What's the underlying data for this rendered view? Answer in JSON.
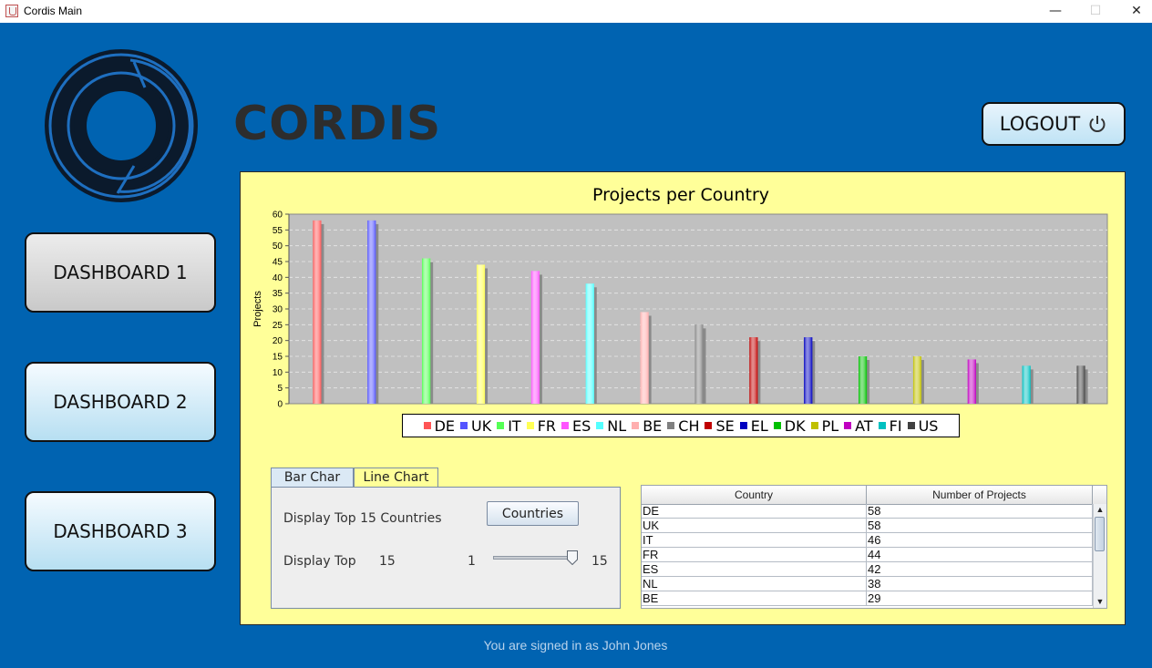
{
  "window": {
    "title": "Cordis Main",
    "minimize": "—",
    "maximize": "☐",
    "close": "✕"
  },
  "brand": {
    "name": "CORDIS",
    "logout_label": "LOGOUT"
  },
  "sidebar": {
    "items": [
      {
        "label": "DASHBOARD 1"
      },
      {
        "label": "DASHBOARD 2"
      },
      {
        "label": "DASHBOARD 3"
      }
    ]
  },
  "tabs": [
    {
      "label": "Bar Char"
    },
    {
      "label": "Line Chart"
    }
  ],
  "controls": {
    "display_top_text": "Display Top 15 Countries",
    "countries_button": "Countries",
    "display_top_label": "Display Top",
    "display_top_value": "15",
    "slider_min": "1",
    "slider_max": "15",
    "slider_value": 15
  },
  "table": {
    "columns": [
      "Country",
      "Number of Projects"
    ],
    "rows": [
      [
        "DE",
        "58"
      ],
      [
        "UK",
        "58"
      ],
      [
        "IT",
        "46"
      ],
      [
        "FR",
        "44"
      ],
      [
        "ES",
        "42"
      ],
      [
        "NL",
        "38"
      ],
      [
        "BE",
        "29"
      ]
    ]
  },
  "footer": {
    "signed_in": "You are signed in as John Jones"
  },
  "colors": {
    "background": "#0063b1",
    "panel": "#ffff99",
    "plot": "#c0c0c0"
  },
  "icons": {
    "logout": "power-icon",
    "app": "java-icon"
  },
  "chart_data": {
    "type": "bar",
    "title": "Projects per Country",
    "xlabel": "",
    "ylabel": "Projects",
    "ylim": [
      0,
      60
    ],
    "yticks": [
      "0",
      "5",
      "10",
      "15",
      "20",
      "25",
      "30",
      "35",
      "40",
      "45",
      "50",
      "55",
      "60"
    ],
    "grid": true,
    "legend_position": "bottom",
    "categories": [
      "DE",
      "UK",
      "IT",
      "FR",
      "ES",
      "NL",
      "BE",
      "CH",
      "SE",
      "EL",
      "DK",
      "PL",
      "AT",
      "FI",
      "US"
    ],
    "values": [
      58,
      58,
      46,
      44,
      42,
      38,
      29,
      25,
      21,
      21,
      15,
      15,
      14,
      12,
      12
    ],
    "colors": [
      "#ff5555",
      "#5555ff",
      "#55ff55",
      "#ffff55",
      "#ff55ff",
      "#55ffff",
      "#ffafaf",
      "#808080",
      "#c00000",
      "#0000c0",
      "#00c000",
      "#c0c000",
      "#c000c0",
      "#00c0c0",
      "#404040"
    ]
  }
}
